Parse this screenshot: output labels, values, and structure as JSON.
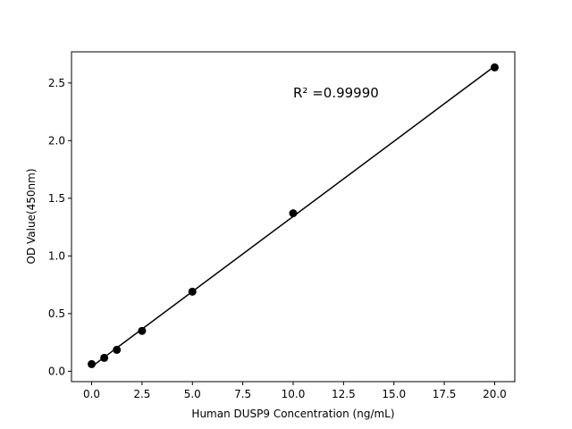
{
  "chart_data": {
    "type": "scatter",
    "title": "",
    "xlabel": "Human DUSP9 Concentration (ng/mL)",
    "ylabel": "OD Value(450nm)",
    "xlim": [
      -1,
      21
    ],
    "ylim": [
      -0.09,
      2.77
    ],
    "xticks": [
      0.0,
      2.5,
      5.0,
      7.5,
      10.0,
      12.5,
      15.0,
      17.5,
      20.0
    ],
    "xtick_labels": [
      "0.0",
      "2.5",
      "5.0",
      "7.5",
      "10.0",
      "12.5",
      "15.0",
      "17.5",
      "20.0"
    ],
    "yticks": [
      0.0,
      0.5,
      1.0,
      1.5,
      2.0,
      2.5
    ],
    "ytick_labels": [
      "0.0",
      "0.5",
      "1.0",
      "1.5",
      "2.0",
      "2.5"
    ],
    "grid": false,
    "x": [
      0,
      0.625,
      1.25,
      2.5,
      5,
      10,
      20
    ],
    "y": [
      0.062,
      0.116,
      0.186,
      0.35,
      0.69,
      1.37,
      2.635
    ],
    "fit_line": true,
    "annotation": "R² =0.99990",
    "color": "#000000"
  }
}
